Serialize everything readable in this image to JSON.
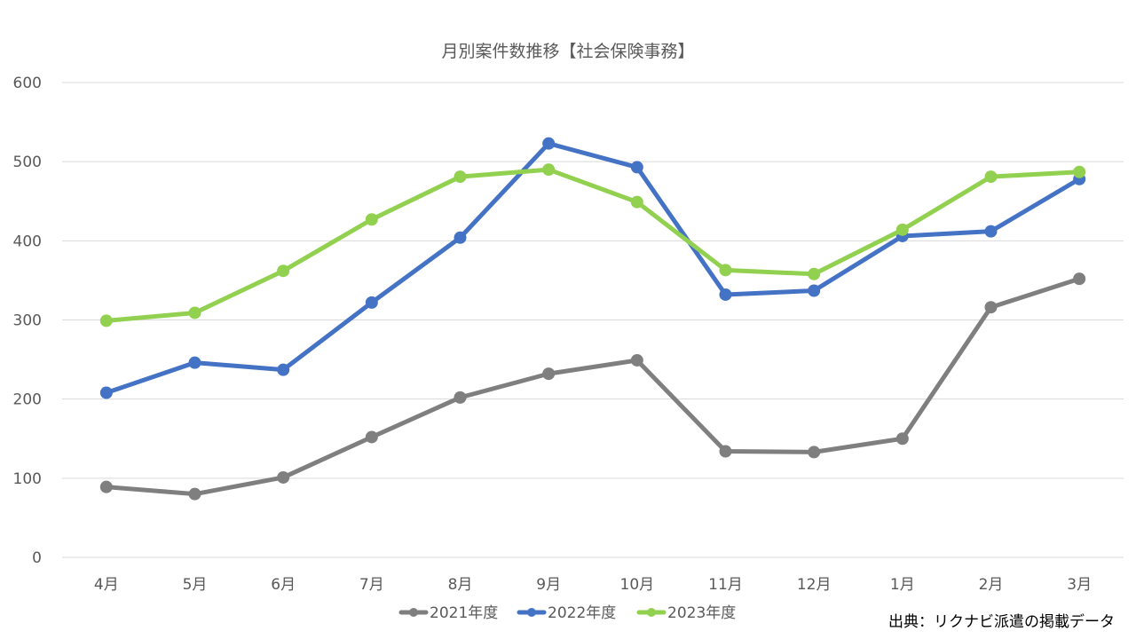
{
  "chart_data": {
    "type": "line",
    "title": "月別案件数推移【社会保険事務】",
    "xlabel": "",
    "ylabel": "",
    "categories": [
      "4月",
      "5月",
      "6月",
      "7月",
      "8月",
      "9月",
      "10月",
      "11月",
      "12月",
      "1月",
      "2月",
      "3月"
    ],
    "ylim": [
      0,
      600
    ],
    "yticks": [
      "0",
      "100",
      "200",
      "300",
      "400",
      "500",
      "600"
    ],
    "grid": true,
    "legend": "bottom",
    "series": [
      {
        "name": "2021年度",
        "color": "#7f7f7f",
        "values": [
          89,
          80,
          101,
          152,
          202,
          232,
          249,
          134,
          133,
          150,
          316,
          352
        ]
      },
      {
        "name": "2022年度",
        "color": "#4472c4",
        "values": [
          208,
          246,
          237,
          322,
          404,
          523,
          493,
          332,
          337,
          406,
          412,
          478
        ]
      },
      {
        "name": "2023年度",
        "color": "#92d050",
        "values": [
          299,
          309,
          362,
          427,
          481,
          490,
          449,
          363,
          358,
          414,
          481,
          487
        ]
      }
    ],
    "source": "出典：リクナビ派遣の掲載データ"
  }
}
